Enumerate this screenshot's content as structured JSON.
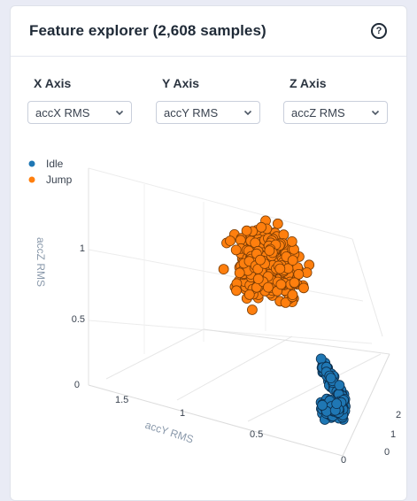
{
  "header": {
    "title": "Feature explorer (2,608 samples)",
    "help_icon": "question-circle-icon"
  },
  "axes": [
    {
      "label": "X Axis",
      "selected": "accX RMS"
    },
    {
      "label": "Y Axis",
      "selected": "accY RMS"
    },
    {
      "label": "Z Axis",
      "selected": "accZ RMS"
    }
  ],
  "chart_data": {
    "type": "scatter",
    "projection": "3d",
    "legend_placement": "top-left",
    "series": [
      {
        "name": "Idle",
        "color": "#1f77b4",
        "x_range": [
          0.0,
          0.3
        ],
        "y_range": [
          0.0,
          0.6
        ],
        "z_range": [
          0.0,
          0.2
        ]
      },
      {
        "name": "Jump",
        "color": "#ff7f0e",
        "x_range": [
          0.5,
          2.0
        ],
        "y_range": [
          0.4,
          1.8
        ],
        "z_range": [
          0.45,
          1.35
        ]
      }
    ],
    "zaxis": {
      "title": "accZ RMS",
      "ticks": [
        "0",
        "0.5",
        "1"
      ]
    },
    "yaxis": {
      "title": "accY RMS",
      "ticks": [
        "0",
        "0.5",
        "1",
        "1.5"
      ]
    },
    "xaxis": {
      "title": "",
      "ticks": [
        "0",
        "1",
        "2"
      ]
    },
    "grid": true
  }
}
